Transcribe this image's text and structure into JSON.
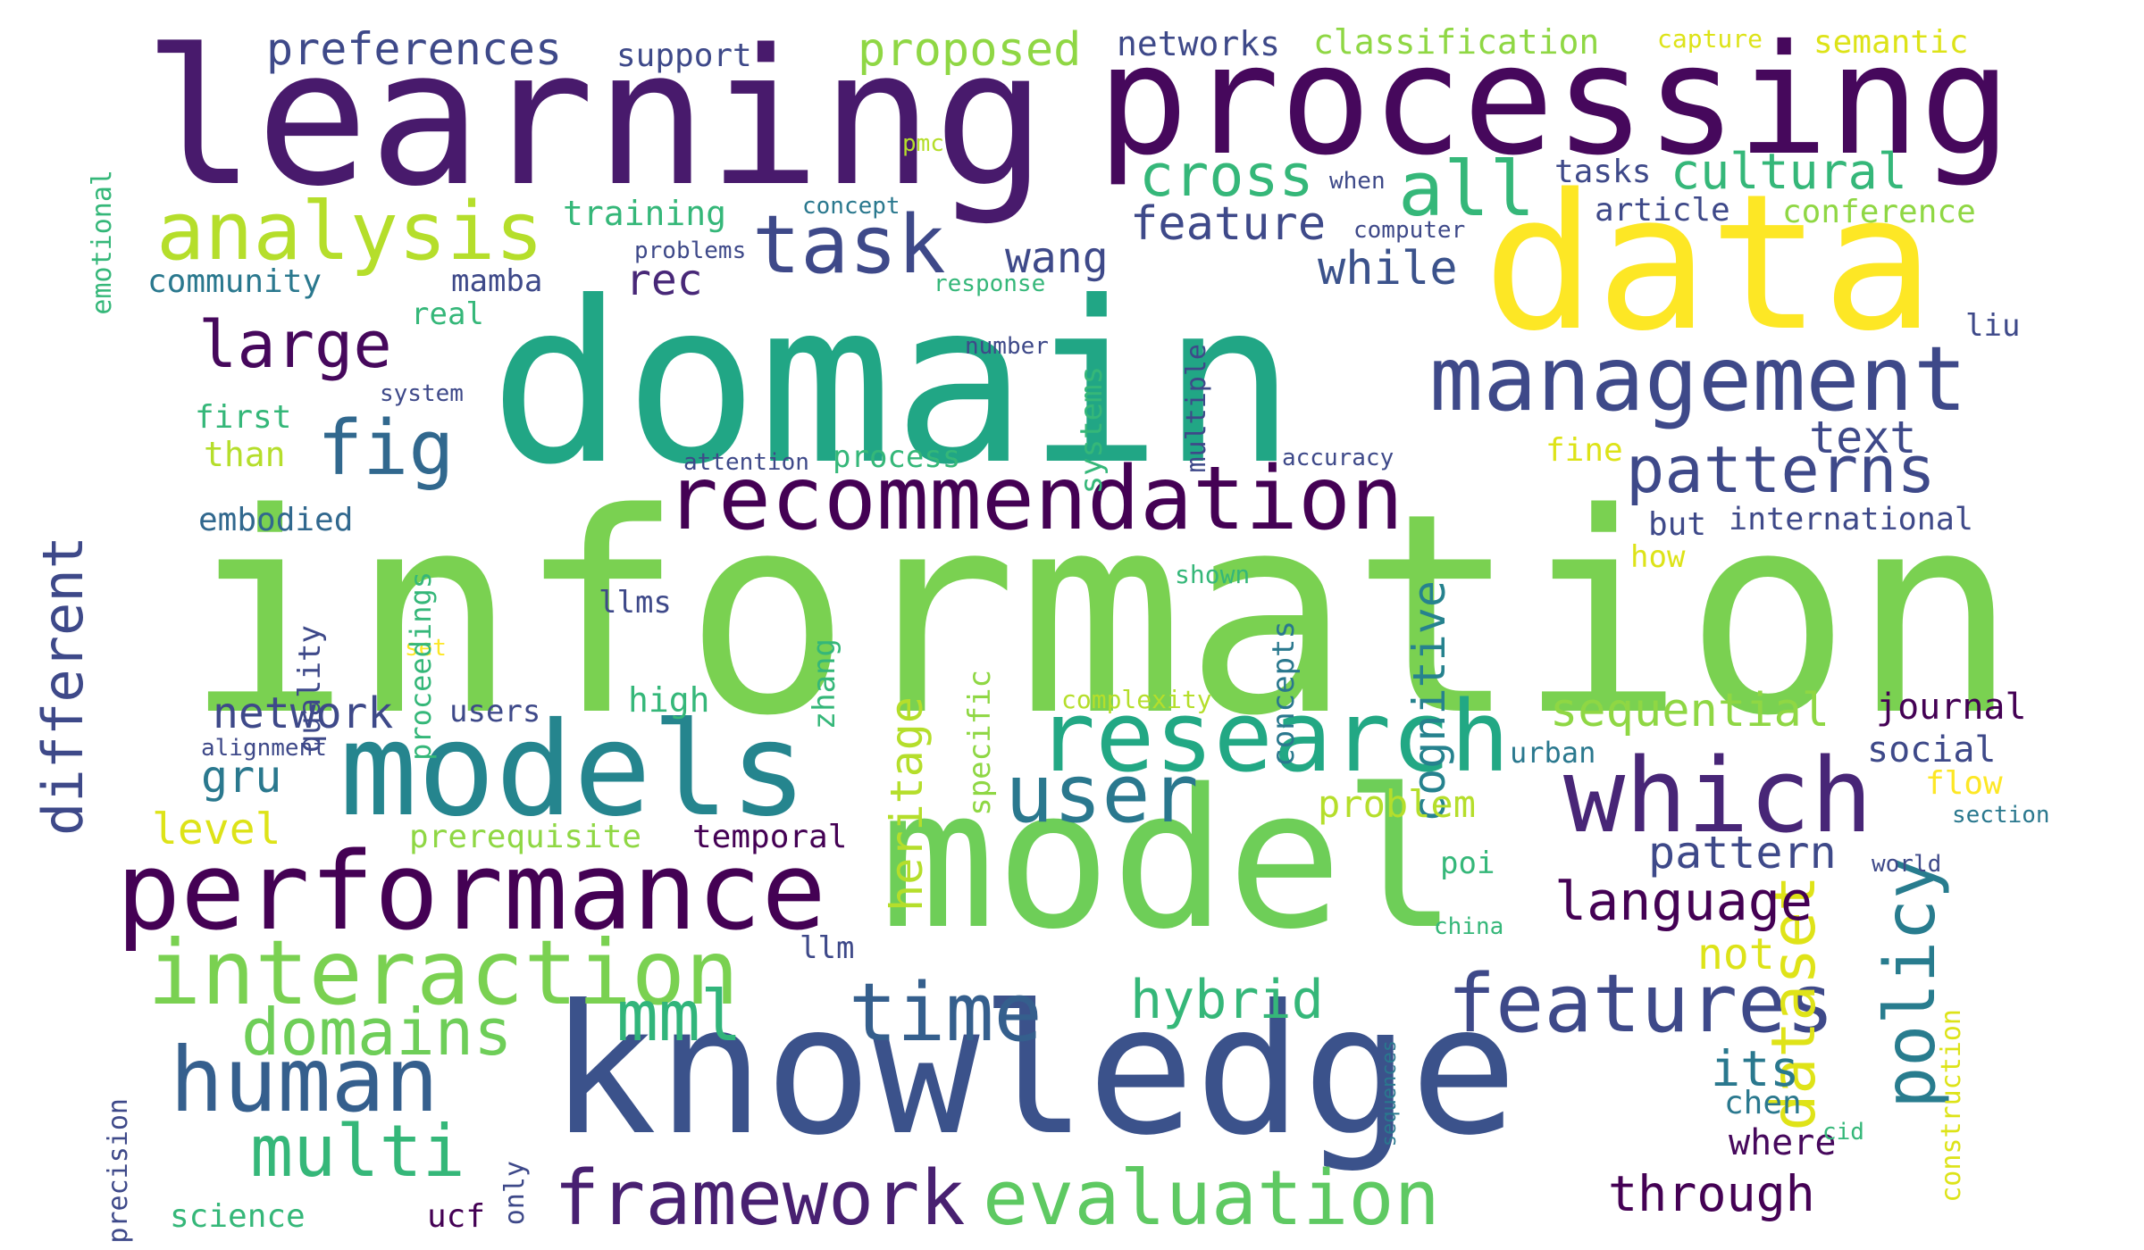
{
  "palette": {
    "background": "#ffffff",
    "viridis": [
      "#440154",
      "#482878",
      "#3e4989",
      "#31688e",
      "#26828e",
      "#1f9e89",
      "#35b779",
      "#6ece58",
      "#b5de2b",
      "#fde725"
    ]
  },
  "words": [
    {
      "text": "information",
      "color": "#7ad151"
    },
    {
      "text": "domain",
      "color": "#21a685"
    },
    {
      "text": "learning",
      "color": "#481a6c"
    },
    {
      "text": "processing",
      "color": "#46085c"
    },
    {
      "text": "data",
      "color": "#fde725"
    },
    {
      "text": "model",
      "color": "#6ece58"
    },
    {
      "text": "knowledge",
      "color": "#3b528b"
    },
    {
      "text": "models",
      "color": "#25858e"
    },
    {
      "text": "performance",
      "color": "#440154"
    },
    {
      "text": "recommendation",
      "color": "#440154"
    },
    {
      "text": "management",
      "color": "#3e4989"
    },
    {
      "text": "research",
      "color": "#22a884"
    },
    {
      "text": "which",
      "color": "#482677"
    },
    {
      "text": "interaction",
      "color": "#7ad151"
    },
    {
      "text": "human",
      "color": "#355f8d"
    },
    {
      "text": "evaluation",
      "color": "#5ec962"
    },
    {
      "text": "framework",
      "color": "#482071"
    },
    {
      "text": "features",
      "color": "#3e4989"
    },
    {
      "text": "analysis",
      "color": "#b5de2b"
    },
    {
      "text": "task",
      "color": "#3e4989"
    },
    {
      "text": "user",
      "color": "#2a788e"
    },
    {
      "text": "time",
      "color": "#355f8d"
    },
    {
      "text": "policy",
      "color": "#287c8e"
    },
    {
      "text": "dataset",
      "color": "#dfe318"
    },
    {
      "text": "patterns",
      "color": "#3e4989"
    },
    {
      "text": "domains",
      "color": "#6ece58"
    },
    {
      "text": "multi",
      "color": "#35b779"
    },
    {
      "text": "mml",
      "color": "#31b57b"
    },
    {
      "text": "fig",
      "color": "#31688e"
    },
    {
      "text": "different",
      "color": "#3e4989"
    },
    {
      "text": "large",
      "color": "#46085c"
    },
    {
      "text": "cross",
      "color": "#35b779"
    },
    {
      "text": "all",
      "color": "#35b779"
    },
    {
      "text": "language",
      "color": "#440154"
    },
    {
      "text": "hybrid",
      "color": "#35b779"
    },
    {
      "text": "through",
      "color": "#440154"
    },
    {
      "text": "cultural",
      "color": "#35b779"
    },
    {
      "text": "sequential",
      "color": "#8fd744"
    },
    {
      "text": "cognitive",
      "color": "#26828e"
    },
    {
      "text": "heritage",
      "color": "#b5de2b"
    },
    {
      "text": "feature",
      "color": "#3e4989"
    },
    {
      "text": "while",
      "color": "#3b528b"
    },
    {
      "text": "wang",
      "color": "#3e4989"
    },
    {
      "text": "preferences",
      "color": "#3e4989"
    },
    {
      "text": "proposed",
      "color": "#8fd744"
    },
    {
      "text": "pattern",
      "color": "#3e4989"
    },
    {
      "text": "its",
      "color": "#2a788e"
    },
    {
      "text": "network",
      "color": "#3e4989"
    },
    {
      "text": "gru",
      "color": "#2a788e"
    },
    {
      "text": "level",
      "color": "#dde318"
    },
    {
      "text": "rec",
      "color": "#482878"
    },
    {
      "text": "text",
      "color": "#3e4989"
    },
    {
      "text": "problem",
      "color": "#b5de2b"
    },
    {
      "text": "not",
      "color": "#dde318"
    },
    {
      "text": "social",
      "color": "#3e4989"
    },
    {
      "text": "where",
      "color": "#46085c"
    },
    {
      "text": "chen",
      "color": "#2a788e"
    },
    {
      "text": "flow",
      "color": "#fde725"
    },
    {
      "text": "journal",
      "color": "#440154"
    },
    {
      "text": "networks",
      "color": "#3e4989"
    },
    {
      "text": "classification",
      "color": "#8fd744"
    },
    {
      "text": "semantic",
      "color": "#dde318"
    },
    {
      "text": "capture",
      "color": "#dde318"
    },
    {
      "text": "support",
      "color": "#3e4989"
    },
    {
      "text": "community",
      "color": "#2a788e"
    },
    {
      "text": "mamba",
      "color": "#3e4989"
    },
    {
      "text": "real",
      "color": "#35b779"
    },
    {
      "text": "training",
      "color": "#35b779"
    },
    {
      "text": "concept",
      "color": "#2a788e"
    },
    {
      "text": "problems",
      "color": "#3e4989"
    },
    {
      "text": "response",
      "color": "#35b779"
    },
    {
      "text": "tasks",
      "color": "#3e4989"
    },
    {
      "text": "article",
      "color": "#3e4989"
    },
    {
      "text": "conference",
      "color": "#8fd744"
    },
    {
      "text": "when",
      "color": "#3e4989"
    },
    {
      "text": "computer",
      "color": "#3e4989"
    },
    {
      "text": "number",
      "color": "#3e4989"
    },
    {
      "text": "system",
      "color": "#3e4989"
    },
    {
      "text": "first",
      "color": "#35b779"
    },
    {
      "text": "than",
      "color": "#b5de2b"
    },
    {
      "text": "embodied",
      "color": "#31688e"
    },
    {
      "text": "attention",
      "color": "#3e4989"
    },
    {
      "text": "process",
      "color": "#35b779"
    },
    {
      "text": "accuracy",
      "color": "#3e4989"
    },
    {
      "text": "fine",
      "color": "#dde318"
    },
    {
      "text": "but",
      "color": "#3e4989"
    },
    {
      "text": "international",
      "color": "#3e4989"
    },
    {
      "text": "how",
      "color": "#dde318"
    },
    {
      "text": "shown",
      "color": "#35b779"
    },
    {
      "text": "llms",
      "color": "#3e4989"
    },
    {
      "text": "set",
      "color": "#fde725"
    },
    {
      "text": "complexity",
      "color": "#b5de2b"
    },
    {
      "text": "high",
      "color": "#35b779"
    },
    {
      "text": "users",
      "color": "#3e4989"
    },
    {
      "text": "alignment",
      "color": "#3e4989"
    },
    {
      "text": "urban",
      "color": "#2a788e"
    },
    {
      "text": "prerequisite",
      "color": "#8fd744"
    },
    {
      "text": "temporal",
      "color": "#440154"
    },
    {
      "text": "section",
      "color": "#2a788e"
    },
    {
      "text": "world",
      "color": "#3e4989"
    },
    {
      "text": "poi",
      "color": "#35b779"
    },
    {
      "text": "llm",
      "color": "#3e4989"
    },
    {
      "text": "china",
      "color": "#35b779"
    },
    {
      "text": "liu",
      "color": "#3e4989"
    },
    {
      "text": "cid",
      "color": "#35b779"
    },
    {
      "text": "science",
      "color": "#35b779"
    },
    {
      "text": "ucf",
      "color": "#440154"
    },
    {
      "text": "pmc",
      "color": "#b5de2b"
    },
    {
      "text": "emotional",
      "color": "#35b779"
    },
    {
      "text": "precision",
      "color": "#3e4989"
    },
    {
      "text": "only",
      "color": "#3e4989"
    },
    {
      "text": "quality",
      "color": "#3e4989"
    },
    {
      "text": "proceedings",
      "color": "#35b779"
    },
    {
      "text": "zhang",
      "color": "#35b779"
    },
    {
      "text": "specific",
      "color": "#8fd744"
    },
    {
      "text": "systems",
      "color": "#35b779"
    },
    {
      "text": "multiple",
      "color": "#3e4989"
    },
    {
      "text": "concepts",
      "color": "#2a788e"
    },
    {
      "text": "construction",
      "color": "#dde318"
    },
    {
      "text": "sequences",
      "color": "#2a788e"
    }
  ]
}
